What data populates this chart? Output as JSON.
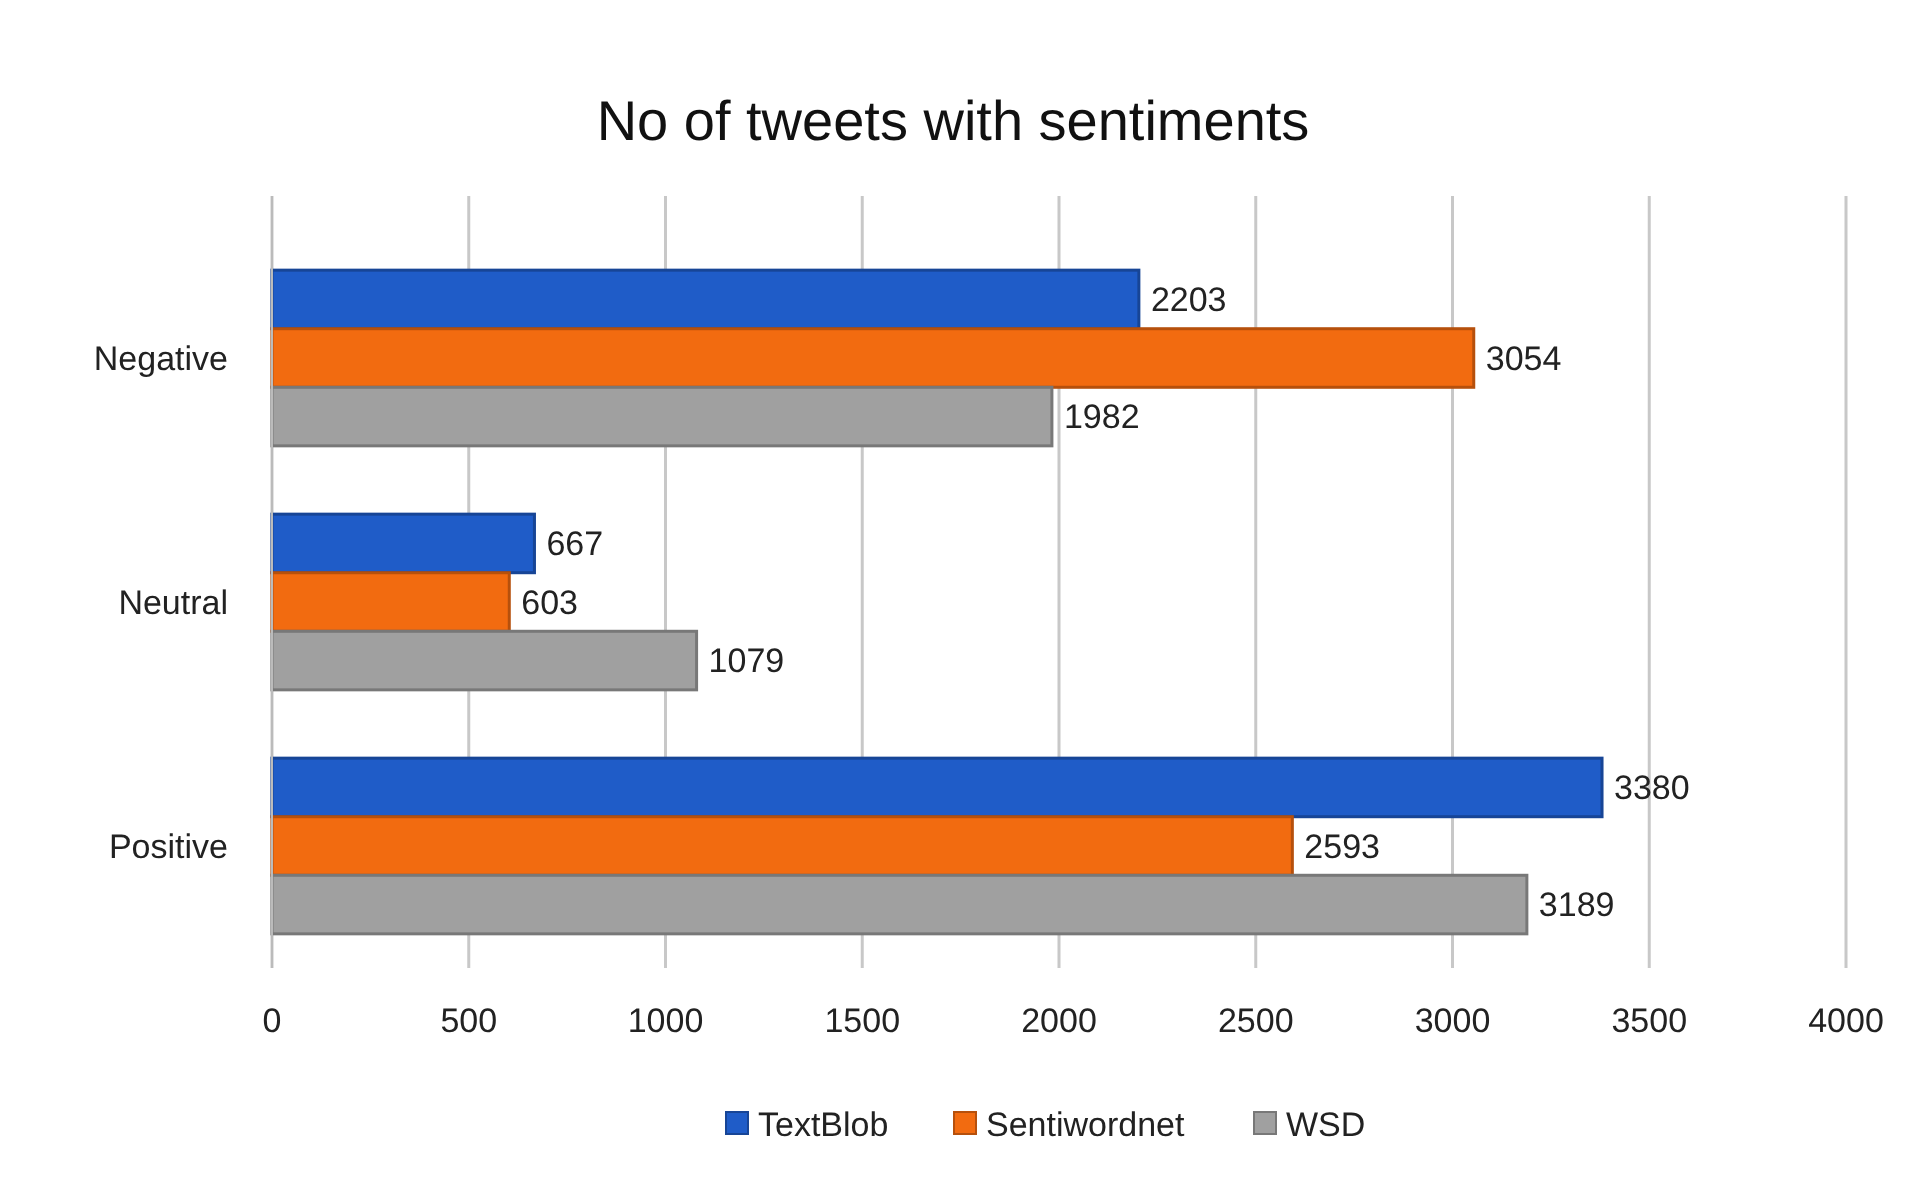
{
  "chart_data": {
    "type": "bar",
    "orientation": "horizontal",
    "title": "No of tweets with sentiments",
    "categories": [
      "Negative",
      "Neutral",
      "Positive"
    ],
    "series": [
      {
        "name": "TextBlob",
        "color": "#1f5cc8",
        "values": [
          2203,
          667,
          3380
        ]
      },
      {
        "name": "Sentiwordnet",
        "color": "#f26b10",
        "values": [
          3054,
          603,
          2593
        ]
      },
      {
        "name": "WSD",
        "color": "#a0a0a0",
        "values": [
          1982,
          1079,
          3189
        ]
      }
    ],
    "xlim": [
      0,
      4000
    ],
    "xticks": [
      0,
      500,
      1000,
      1500,
      2000,
      2500,
      3000,
      3500,
      4000
    ],
    "grid": "x",
    "legend": "bottom",
    "data_labels": true
  }
}
